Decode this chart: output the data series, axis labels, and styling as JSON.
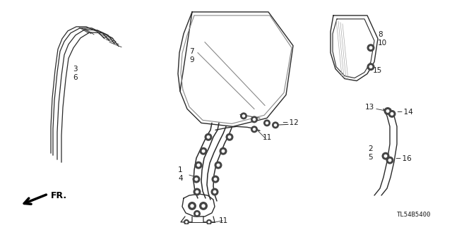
{
  "bg_color": "#ffffff",
  "fig_width": 6.4,
  "fig_height": 3.19,
  "dpi": 100,
  "part_number": "TL54B5400",
  "line_color": "#2a2a2a",
  "text_color": "#1a1a1a",
  "font_size": 7.5
}
